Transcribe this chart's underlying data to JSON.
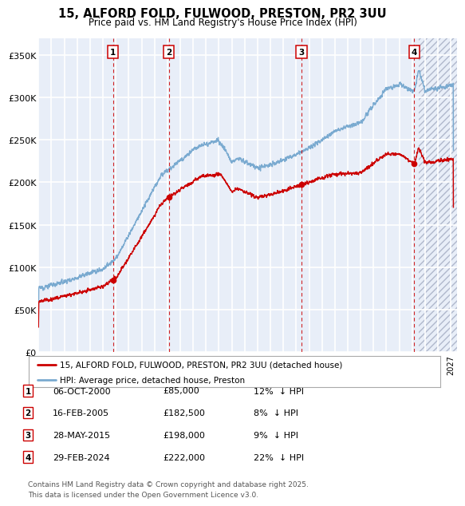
{
  "title": "15, ALFORD FOLD, FULWOOD, PRESTON, PR2 3UU",
  "subtitle": "Price paid vs. HM Land Registry's House Price Index (HPI)",
  "ylim": [
    0,
    370000
  ],
  "yticks": [
    0,
    50000,
    100000,
    150000,
    200000,
    250000,
    300000,
    350000
  ],
  "ytick_labels": [
    "£0",
    "£50K",
    "£100K",
    "£150K",
    "£200K",
    "£250K",
    "£300K",
    "£350K"
  ],
  "xlim_start": 1995.0,
  "xlim_end": 2027.5,
  "background_color": "#ffffff",
  "plot_bg_color": "#e8eef8",
  "grid_color": "#ffffff",
  "hpi_line_color": "#7aaad0",
  "price_line_color": "#cc0000",
  "vline_color": "#cc0000",
  "transactions": [
    {
      "num": 1,
      "date_label": "06-OCT-2000",
      "date_val": 2000.78,
      "price": 85000,
      "pct": "12%",
      "direction": "↓ HPI"
    },
    {
      "num": 2,
      "date_label": "16-FEB-2005",
      "date_val": 2005.12,
      "price": 182500,
      "pct": "8%",
      "direction": "↓ HPI"
    },
    {
      "num": 3,
      "date_label": "28-MAY-2015",
      "date_val": 2015.41,
      "price": 198000,
      "pct": "9%",
      "direction": "↓ HPI"
    },
    {
      "num": 4,
      "date_label": "29-FEB-2024",
      "date_val": 2024.17,
      "price": 222000,
      "pct": "22%",
      "direction": "↓ HPI"
    }
  ],
  "legend_price_label": "15, ALFORD FOLD, FULWOOD, PRESTON, PR2 3UU (detached house)",
  "legend_hpi_label": "HPI: Average price, detached house, Preston",
  "footer_text": "Contains HM Land Registry data © Crown copyright and database right 2025.\nThis data is licensed under the Open Government Licence v3.0.",
  "hatch_start": 2024.5,
  "hatch_end": 2027.5
}
